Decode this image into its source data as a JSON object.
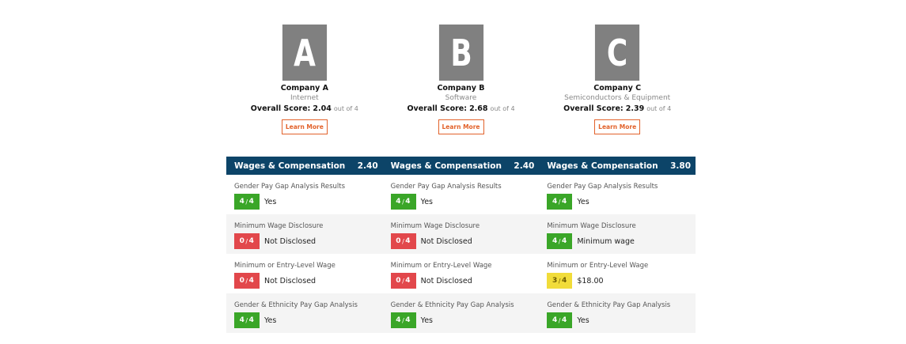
{
  "companies": [
    {
      "letter": "A",
      "name": "Company A",
      "industry": "Internet",
      "score_label": "Overall Score:",
      "score": "2.04",
      "out_of": "out of 4",
      "button": "Learn More"
    },
    {
      "letter": "B",
      "name": "Company B",
      "industry": "Software",
      "score_label": "Overall Score:",
      "score": "2.68",
      "out_of": "out of 4",
      "button": "Learn More"
    },
    {
      "letter": "C",
      "name": "Company C",
      "industry": "Semiconductors & Equipment",
      "score_label": "Overall Score:",
      "score": "2.39",
      "out_of": "out of 4",
      "button": "Learn More"
    }
  ],
  "section": {
    "title": "Wages & Compensation",
    "scores": [
      "2.40",
      "2.40",
      "3.80"
    ]
  },
  "colors": {
    "header": "#0c4468",
    "green": "#3aa628",
    "red": "#e2474b",
    "yellow": "#f1dc3a",
    "accent": "#e2622b"
  },
  "rows": [
    {
      "metric": "Gender Pay Gap Analysis Results",
      "cells": [
        {
          "num": "4",
          "den": "4",
          "color": "green",
          "text": "Yes"
        },
        {
          "num": "4",
          "den": "4",
          "color": "green",
          "text": "Yes"
        },
        {
          "num": "4",
          "den": "4",
          "color": "green",
          "text": "Yes"
        }
      ]
    },
    {
      "metric": "Minimum Wage Disclosure",
      "cells": [
        {
          "num": "0",
          "den": "4",
          "color": "red",
          "text": "Not Disclosed"
        },
        {
          "num": "0",
          "den": "4",
          "color": "red",
          "text": "Not Disclosed"
        },
        {
          "num": "4",
          "den": "4",
          "color": "green",
          "text": "Minimum wage"
        }
      ]
    },
    {
      "metric": "Minimum or Entry-Level Wage",
      "cells": [
        {
          "num": "0",
          "den": "4",
          "color": "red",
          "text": "Not Disclosed"
        },
        {
          "num": "0",
          "den": "4",
          "color": "red",
          "text": "Not Disclosed"
        },
        {
          "num": "3",
          "den": "4",
          "color": "yellow",
          "text": "$18.00"
        }
      ]
    },
    {
      "metric": "Gender & Ethnicity Pay Gap Analysis",
      "cells": [
        {
          "num": "4",
          "den": "4",
          "color": "green",
          "text": "Yes"
        },
        {
          "num": "4",
          "den": "4",
          "color": "green",
          "text": "Yes"
        },
        {
          "num": "4",
          "den": "4",
          "color": "green",
          "text": "Yes"
        }
      ]
    }
  ]
}
